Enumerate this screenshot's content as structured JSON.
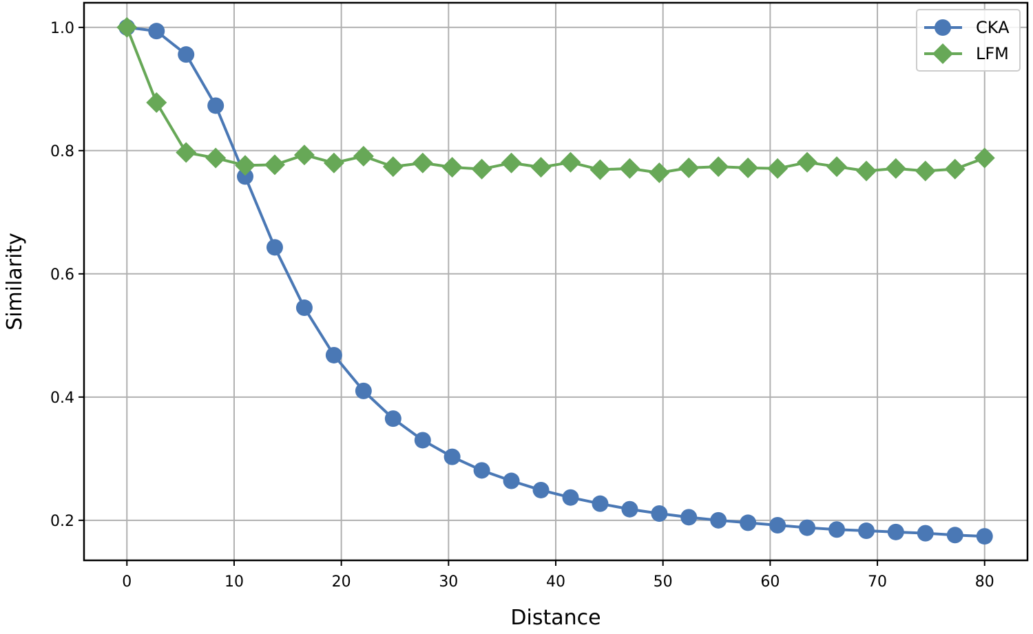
{
  "chart_data": {
    "type": "line",
    "xlabel": "Distance",
    "ylabel": "Similarity",
    "xlim": [
      -4,
      84
    ],
    "ylim": [
      0.135,
      1.04
    ],
    "xticks": [
      0,
      10,
      20,
      30,
      40,
      50,
      60,
      70,
      80
    ],
    "xtick_labels": [
      "0",
      "10",
      "20",
      "30",
      "40",
      "50",
      "60",
      "70",
      "80"
    ],
    "yticks": [
      0.2,
      0.4,
      0.6,
      0.8,
      1.0
    ],
    "ytick_labels": [
      "0.2",
      "0.4",
      "0.6",
      "0.8",
      "1.0"
    ],
    "grid": true,
    "legend_position": "top-right",
    "x": [
      0,
      2.76,
      5.52,
      8.28,
      11.03,
      13.79,
      16.55,
      19.31,
      22.07,
      24.83,
      27.59,
      30.34,
      33.1,
      35.86,
      38.62,
      41.38,
      44.14,
      46.9,
      49.66,
      52.41,
      55.17,
      57.93,
      60.69,
      63.45,
      66.21,
      68.97,
      71.72,
      74.48,
      77.24,
      80
    ],
    "series": [
      {
        "name": "CKA",
        "color": "#4a78b5",
        "marker": "circle",
        "values": [
          1.0,
          0.994,
          0.956,
          0.873,
          0.758,
          0.643,
          0.545,
          0.468,
          0.41,
          0.365,
          0.33,
          0.303,
          0.281,
          0.264,
          0.249,
          0.237,
          0.227,
          0.218,
          0.211,
          0.205,
          0.2,
          0.196,
          0.192,
          0.188,
          0.185,
          0.183,
          0.181,
          0.179,
          0.176,
          0.174
        ]
      },
      {
        "name": "LFM",
        "color": "#67a857",
        "marker": "diamond",
        "values": [
          1.0,
          0.878,
          0.797,
          0.788,
          0.776,
          0.777,
          0.793,
          0.78,
          0.791,
          0.774,
          0.78,
          0.773,
          0.77,
          0.78,
          0.773,
          0.781,
          0.769,
          0.771,
          0.764,
          0.772,
          0.774,
          0.772,
          0.771,
          0.781,
          0.774,
          0.767,
          0.771,
          0.767,
          0.77,
          0.788
        ]
      }
    ]
  }
}
